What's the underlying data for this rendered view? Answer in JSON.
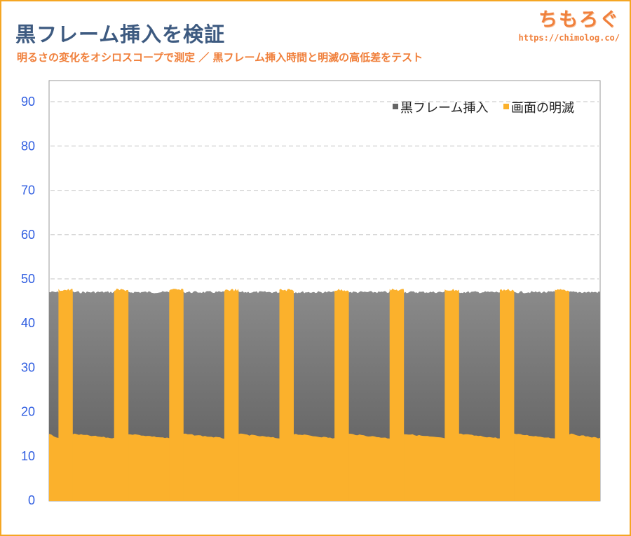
{
  "header": {
    "title": "黒フレーム挿入を検証",
    "subtitle": "明るさの変化をオシロスコープで測定 ／ 黒フレーム挿入時間と明滅の高低差をテスト",
    "brand_name": "ちもろぐ",
    "brand_url": "https://chimolog.co/"
  },
  "colors": {
    "border": "#f5a623",
    "title": "#3d5a80",
    "accent": "#f0803c",
    "tick": "#2f5de0",
    "bfi_top": "#888888",
    "bfi_bottom": "#5c5c5c",
    "flicker": "#fbb12c",
    "grid": "#d0d0d0",
    "plot_border": "#999999"
  },
  "chart_data": {
    "type": "area",
    "title": "",
    "xlabel": "",
    "ylabel": "",
    "ylim": [
      0,
      95
    ],
    "yticks": [
      0,
      10,
      20,
      30,
      40,
      50,
      60,
      70,
      80,
      90
    ],
    "grid": "horizontal dashed",
    "legend_position": "top-right",
    "x_range": [
      0,
      100
    ],
    "series": [
      {
        "name": "黒フレーム挿入",
        "color": "#777777",
        "values_description_level": 47,
        "level": 47
      },
      {
        "name": "画面の明滅",
        "color": "#fbb12c",
        "baseline_start": 15,
        "baseline_end": 14,
        "spike_peak": 48,
        "spike_starts": [
          1.7,
          11.8,
          21.8,
          31.8,
          41.8,
          51.8,
          61.8,
          71.8,
          81.8,
          91.8
        ],
        "spike_width": 2.6
      }
    ]
  }
}
